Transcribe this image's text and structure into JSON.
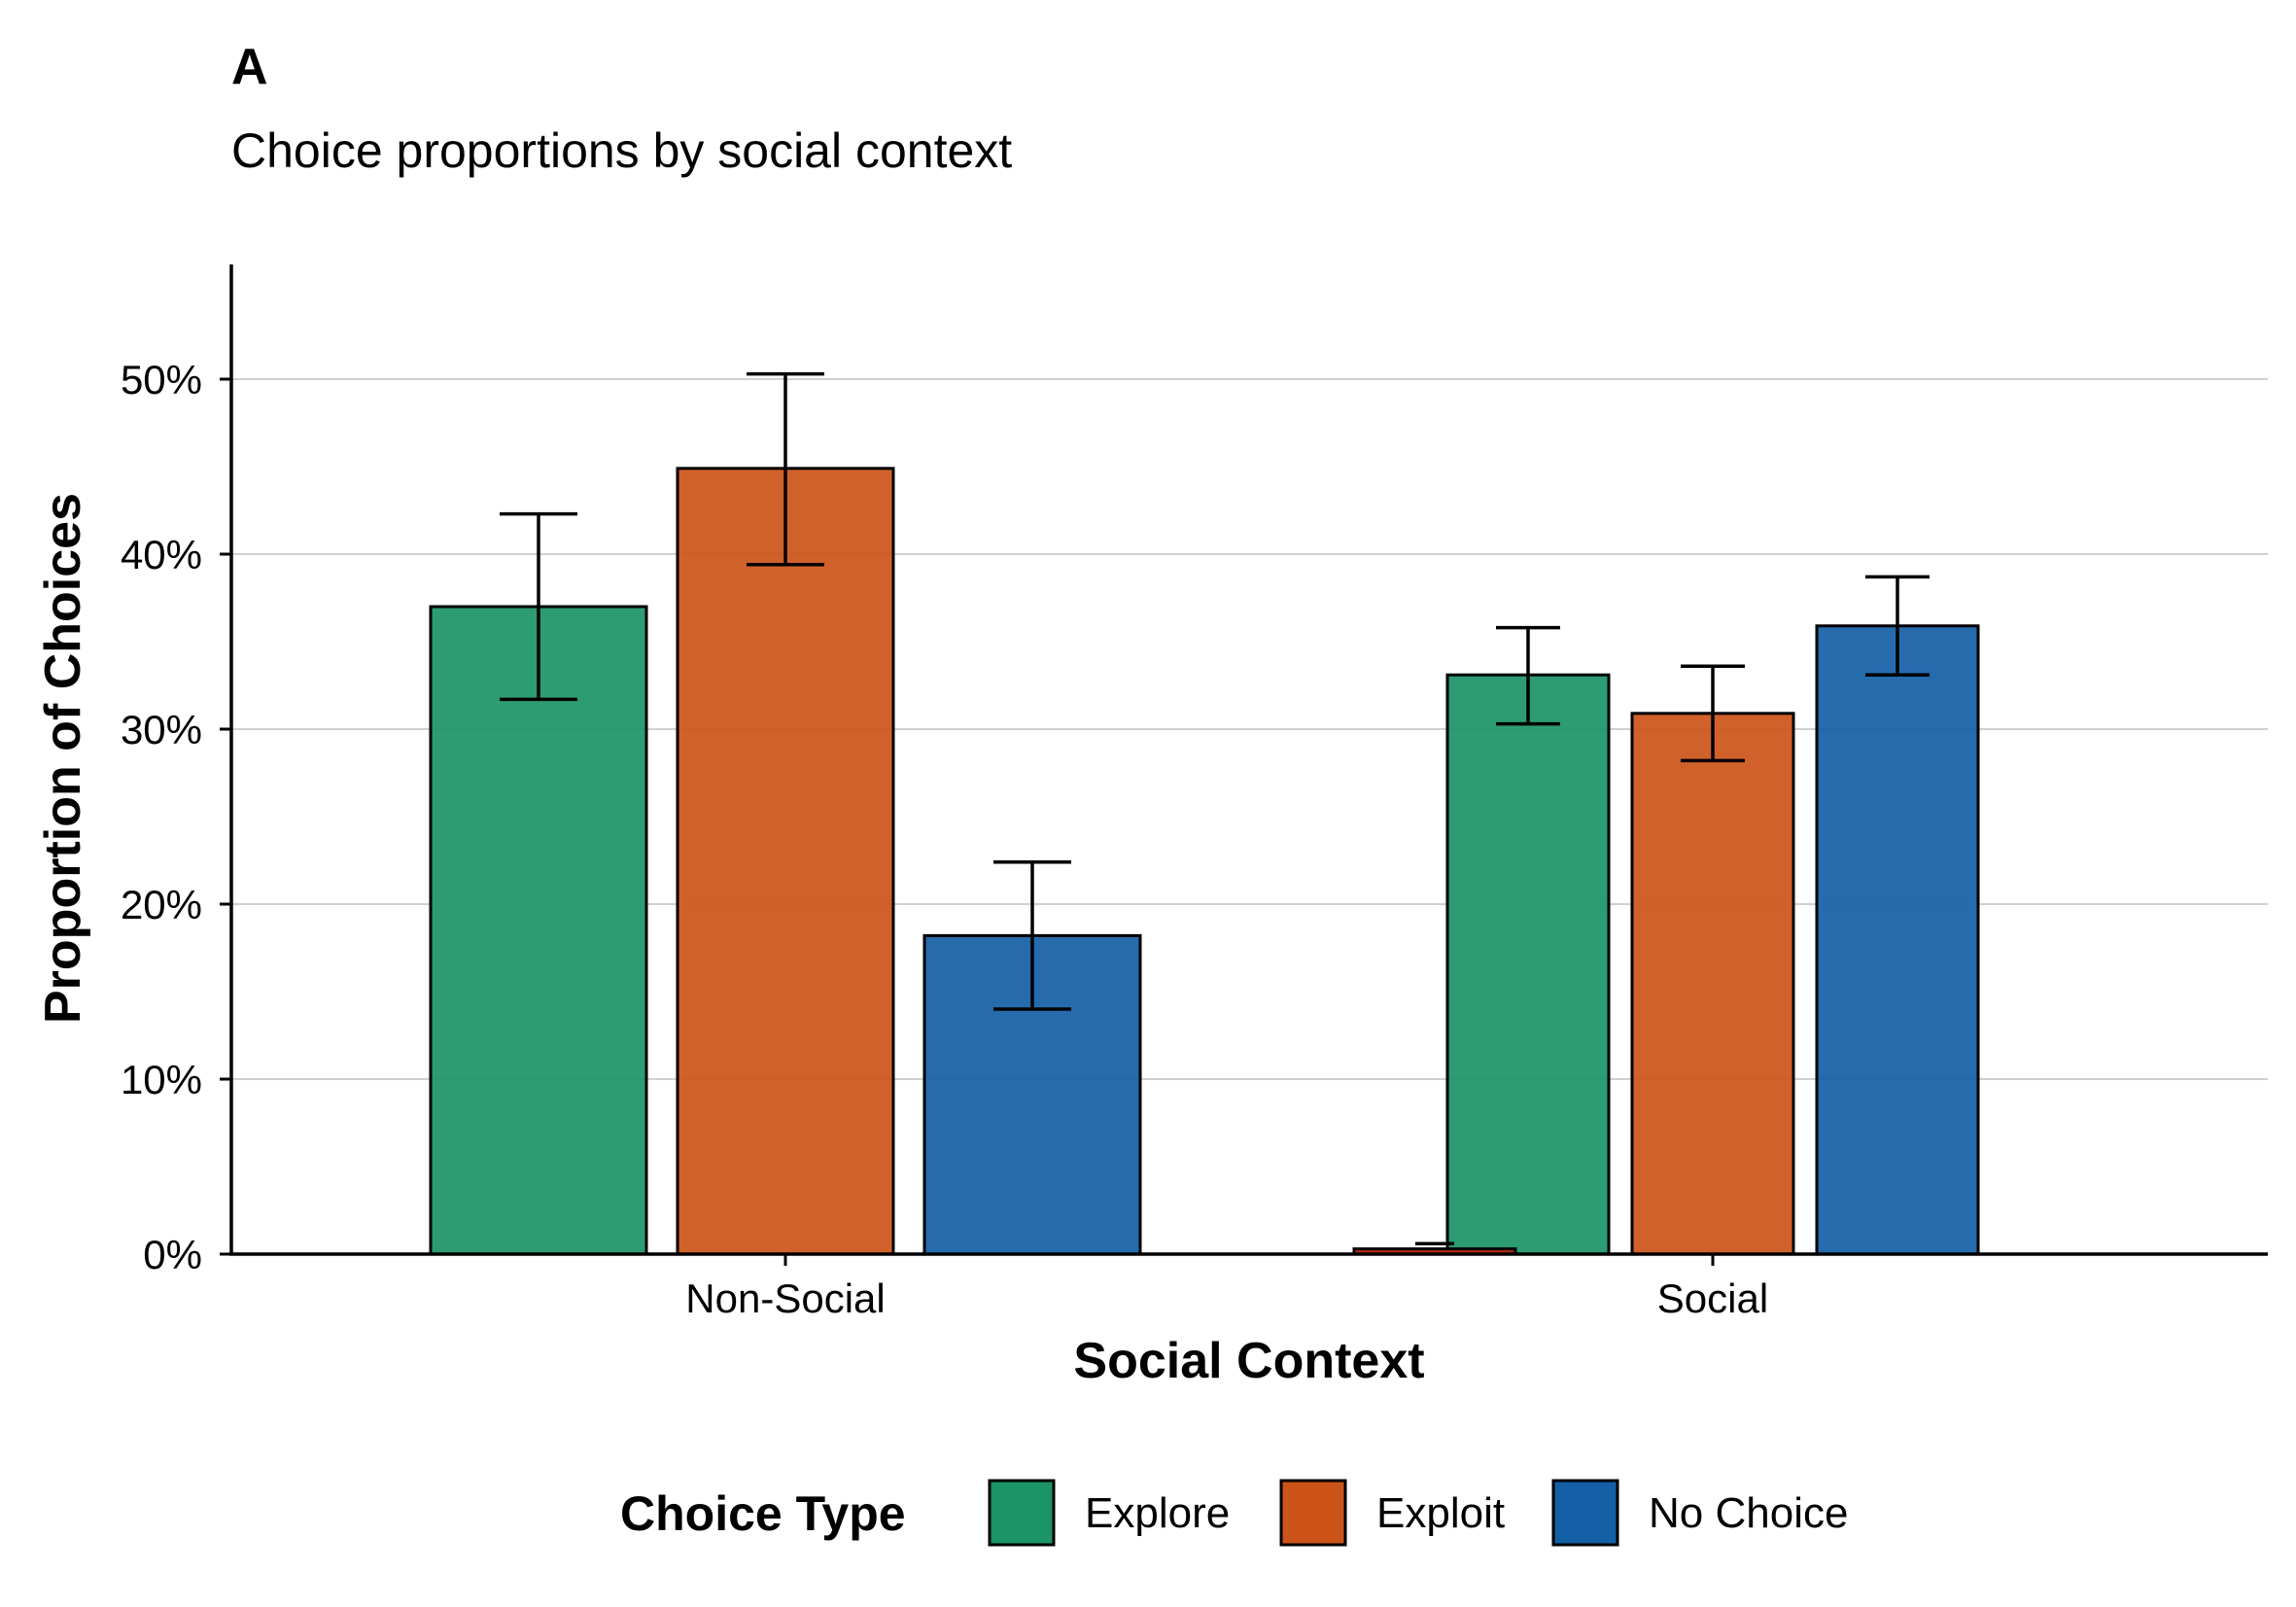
{
  "chart_data": {
    "type": "bar",
    "tag": "A",
    "title": "Choice proportions by social context",
    "xlabel": "Social Context",
    "ylabel": "Proportion of Choices",
    "ylim": [
      0,
      0.565
    ],
    "yticks": [
      0,
      0.1,
      0.2,
      0.3,
      0.4,
      0.5
    ],
    "ytick_labels": [
      "0%",
      "10%",
      "20%",
      "30%",
      "40%",
      "50%"
    ],
    "grid": "horizontal major",
    "categories": [
      "Non-Social",
      "Social"
    ],
    "legend": {
      "title": "Choice Type",
      "position": "bottom"
    },
    "series": [
      {
        "name": "Explore",
        "color": "#1b9467",
        "values": [
          0.37,
          0.331
        ],
        "lower": [
          0.317,
          0.303
        ],
        "upper": [
          0.423,
          0.358
        ]
      },
      {
        "name": "Exploit",
        "color": "#cc5419",
        "values": [
          0.449,
          0.309
        ],
        "lower": [
          0.394,
          0.282
        ],
        "upper": [
          0.503,
          0.336
        ]
      },
      {
        "name": "No Choice",
        "color": "#1460a6",
        "values": [
          0.182,
          0.359
        ],
        "lower": [
          0.14,
          0.331
        ],
        "upper": [
          0.224,
          0.387
        ]
      }
    ],
    "extra_bar": {
      "category": "Social",
      "value": 0.003,
      "upper": 0.006,
      "color": "#b22a0f"
    }
  }
}
